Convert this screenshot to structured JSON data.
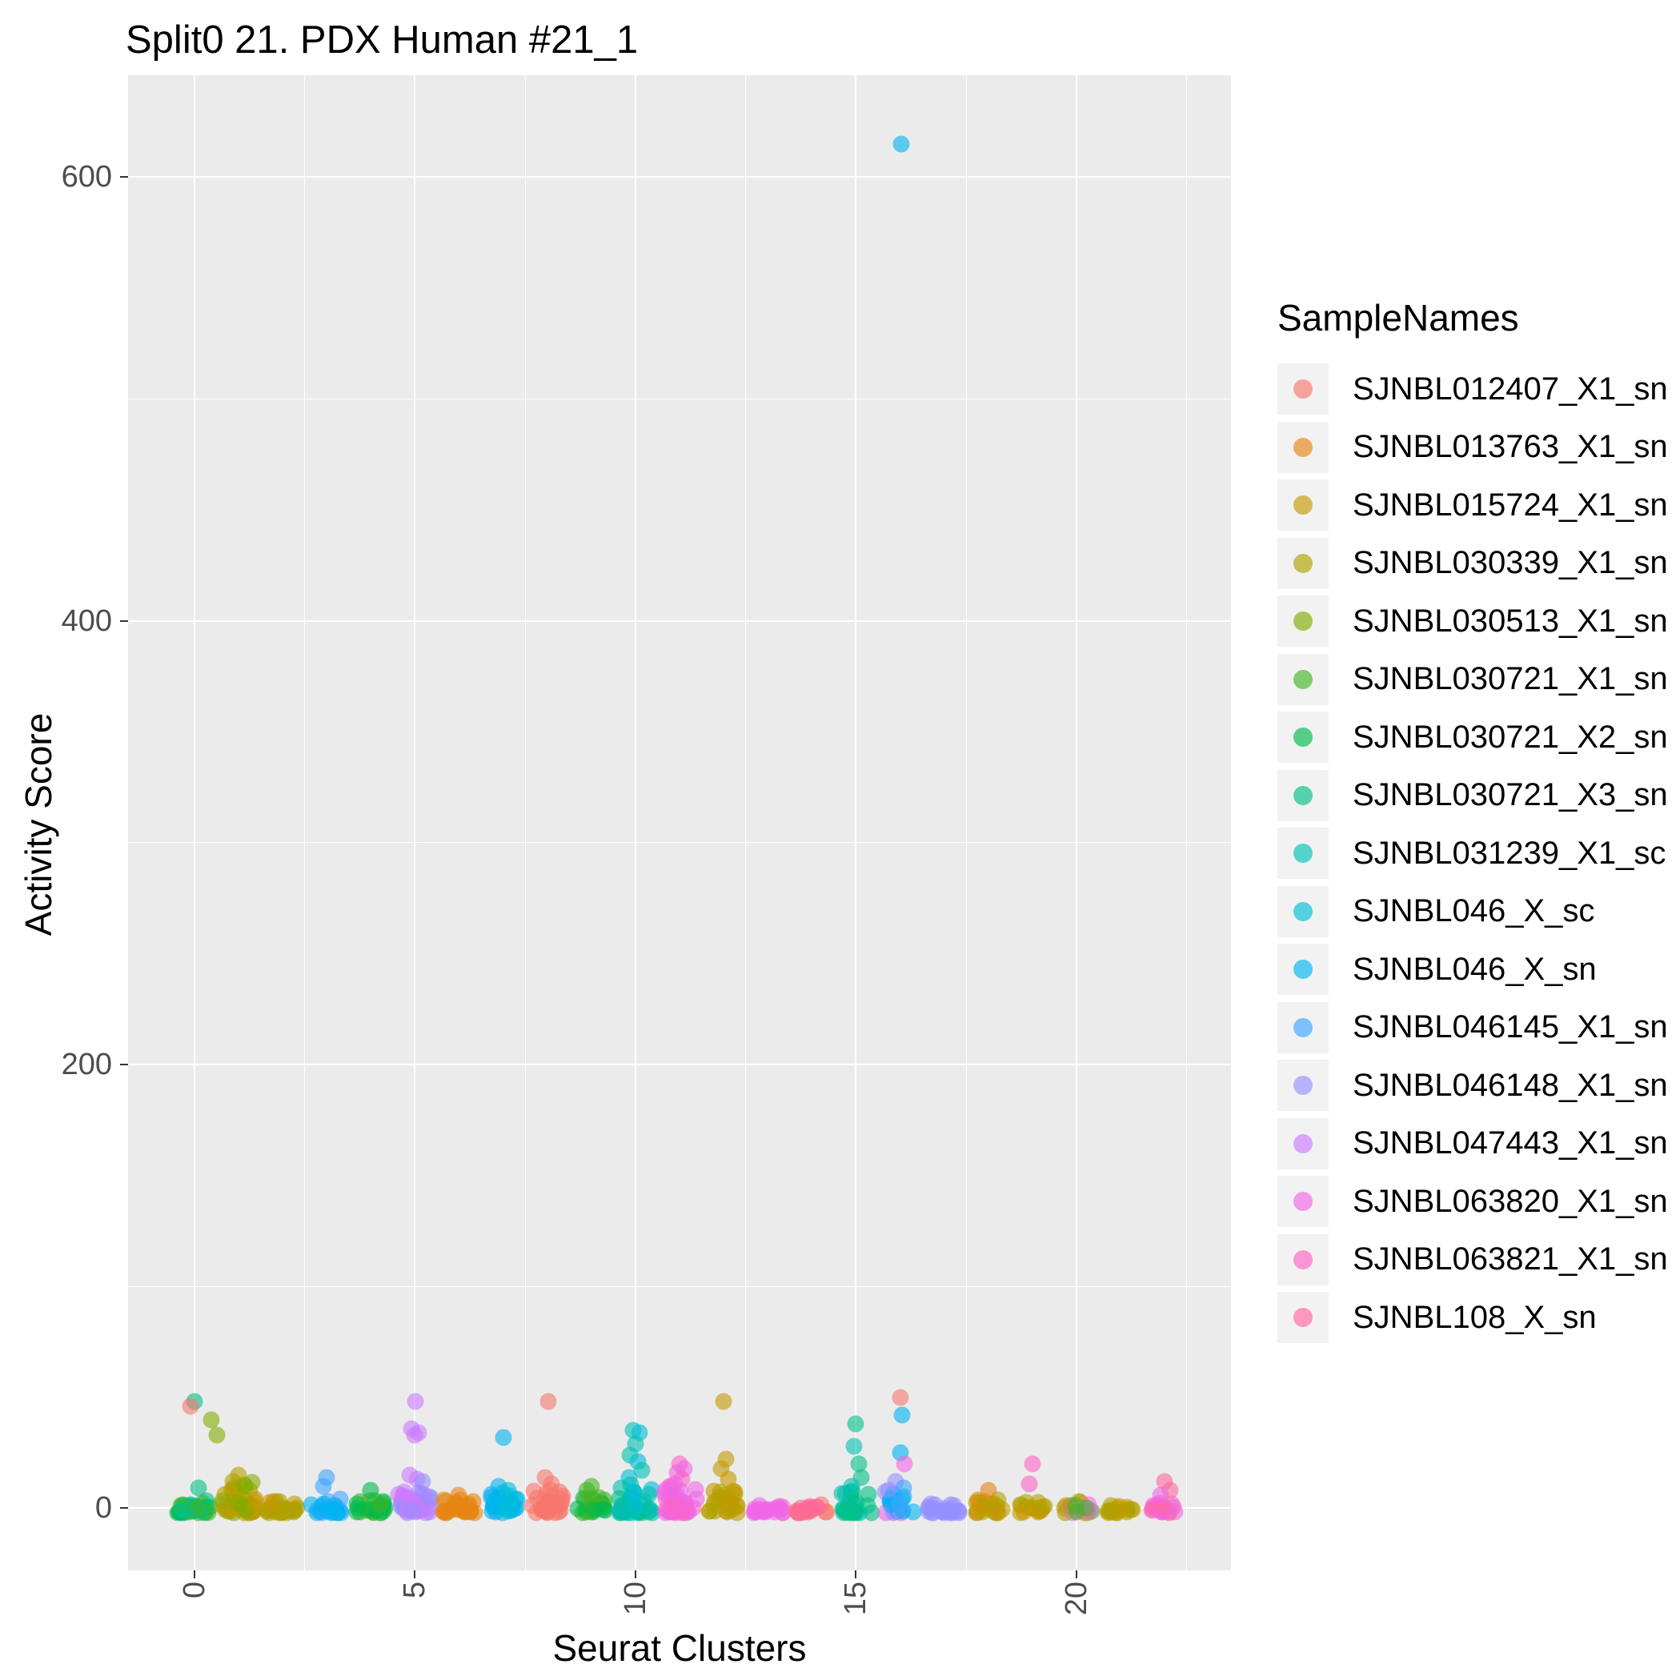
{
  "title": "Split0 21. PDX Human #21_1",
  "axes": {
    "x_title": "Seurat Clusters",
    "y_title": "Activity Score"
  },
  "legend": {
    "title": "SampleNames"
  },
  "samples": [
    {
      "label": "SJNBL012407_X1_sn",
      "color": "#F8766D"
    },
    {
      "label": "SJNBL013763_X1_sn",
      "color": "#E68613"
    },
    {
      "label": "SJNBL015724_X1_sn",
      "color": "#C59900"
    },
    {
      "label": "SJNBL030339_X1_sn",
      "color": "#AFA100"
    },
    {
      "label": "SJNBL030513_X1_sn",
      "color": "#82AC00"
    },
    {
      "label": "SJNBL030721_X1_sn",
      "color": "#43B425"
    },
    {
      "label": "SJNBL030721_X2_sn",
      "color": "#00BB4E"
    },
    {
      "label": "SJNBL030721_X3_sn",
      "color": "#00C087"
    },
    {
      "label": "SJNBL031239_X1_sc",
      "color": "#00C0B2"
    },
    {
      "label": "SJNBL046_X_sc",
      "color": "#00BCD8"
    },
    {
      "label": "SJNBL046_X_sn",
      "color": "#00B3F2"
    },
    {
      "label": "SJNBL046145_X1_sn",
      "color": "#3DA5FF"
    },
    {
      "label": "SJNBL046148_X1_sn",
      "color": "#9590FF"
    },
    {
      "label": "SJNBL047443_X1_sn",
      "color": "#CC79FF"
    },
    {
      "label": "SJNBL063820_X1_sn",
      "color": "#F067E6"
    },
    {
      "label": "SJNBL063821_X1_sn",
      "color": "#FB64C5"
    },
    {
      "label": "SJNBL108_X_sn",
      "color": "#FD699C"
    }
  ],
  "chart_data": {
    "type": "scatter",
    "title": "Split0 21. PDX Human #21_1",
    "xlabel": "Seurat Clusters",
    "ylabel": "Activity Score",
    "xlim": [
      -1.5,
      23.5
    ],
    "ylim": [
      -28,
      646
    ],
    "x_ticks": [
      0,
      5,
      10,
      15,
      20
    ],
    "y_ticks": [
      0,
      200,
      400,
      600
    ],
    "x_minor": [
      2.5,
      7.5,
      12.5,
      17.5,
      22.5
    ],
    "y_minor": [
      100,
      300,
      500
    ],
    "panel_bg": "#EBEBEB",
    "grid_color": "#FFFFFF",
    "legend_position": "right",
    "point_alpha": 0.6,
    "band_y_min": -2,
    "points": [
      [
        0.0,
        48,
        7
      ],
      [
        -0.08,
        46,
        0
      ],
      [
        0.38,
        40,
        4
      ],
      [
        0.52,
        33,
        4
      ],
      [
        0.1,
        9,
        7
      ],
      [
        1.0,
        15,
        3
      ],
      [
        0.88,
        12,
        3
      ],
      [
        1.15,
        10,
        4
      ],
      [
        3.0,
        14,
        11
      ],
      [
        2.92,
        10,
        11
      ],
      [
        4.0,
        8,
        6
      ],
      [
        5.02,
        48,
        13
      ],
      [
        4.93,
        36,
        13
      ],
      [
        5.08,
        34,
        13
      ],
      [
        5.0,
        33,
        13
      ],
      [
        4.88,
        15,
        13
      ],
      [
        5.05,
        13,
        13
      ],
      [
        5.18,
        12,
        12
      ],
      [
        6.0,
        6,
        1
      ],
      [
        7.0,
        32,
        10
      ],
      [
        6.9,
        10,
        10
      ],
      [
        7.12,
        8,
        9
      ],
      [
        8.02,
        48,
        0
      ],
      [
        7.95,
        14,
        0
      ],
      [
        8.1,
        11,
        0
      ],
      [
        9.0,
        10,
        5
      ],
      [
        8.9,
        8,
        5
      ],
      [
        9.95,
        35,
        8
      ],
      [
        10.1,
        34,
        9
      ],
      [
        10.0,
        29,
        8
      ],
      [
        9.88,
        24,
        8
      ],
      [
        10.06,
        21,
        9
      ],
      [
        10.15,
        17,
        8
      ],
      [
        9.85,
        14,
        9
      ],
      [
        11.0,
        20,
        15
      ],
      [
        11.1,
        18,
        14
      ],
      [
        10.95,
        16,
        14
      ],
      [
        11.05,
        13,
        15
      ],
      [
        10.9,
        11,
        14
      ],
      [
        12.0,
        48,
        2
      ],
      [
        12.06,
        22,
        2
      ],
      [
        11.95,
        18,
        2
      ],
      [
        12.1,
        13,
        2
      ],
      [
        15.0,
        38,
        7
      ],
      [
        14.95,
        28,
        8
      ],
      [
        15.06,
        20,
        7
      ],
      [
        15.12,
        14,
        7
      ],
      [
        14.9,
        10,
        8
      ],
      [
        16.02,
        615,
        10
      ],
      [
        16.0,
        50,
        0
      ],
      [
        16.05,
        42,
        10
      ],
      [
        16.0,
        25,
        10
      ],
      [
        16.1,
        20,
        14
      ],
      [
        15.9,
        12,
        12
      ],
      [
        16.08,
        9,
        11
      ],
      [
        18.0,
        8,
        1
      ],
      [
        19.0,
        20,
        15
      ],
      [
        18.92,
        11,
        15
      ],
      [
        22.0,
        12,
        16
      ],
      [
        22.12,
        8,
        16
      ],
      [
        21.9,
        6,
        14
      ]
    ],
    "dense_bands": [
      {
        "x": 0,
        "spread": 0.38,
        "y_max": 4,
        "n": 40,
        "samples": [
          5,
          6,
          7,
          8
        ]
      },
      {
        "x": 1,
        "spread": 0.4,
        "y_max": 12,
        "n": 46,
        "samples": [
          3,
          4,
          2
        ]
      },
      {
        "x": 2,
        "spread": 0.38,
        "y_max": 3,
        "n": 28,
        "samples": [
          3,
          2
        ]
      },
      {
        "x": 3,
        "spread": 0.35,
        "y_max": 5,
        "n": 24,
        "samples": [
          11,
          10
        ]
      },
      {
        "x": 4,
        "spread": 0.33,
        "y_max": 4,
        "n": 22,
        "samples": [
          6,
          5
        ]
      },
      {
        "x": 5,
        "spread": 0.38,
        "y_max": 8,
        "n": 34,
        "samples": [
          13,
          12
        ]
      },
      {
        "x": 6,
        "spread": 0.38,
        "y_max": 4,
        "n": 26,
        "samples": [
          1
        ]
      },
      {
        "x": 7,
        "spread": 0.36,
        "y_max": 7,
        "n": 28,
        "samples": [
          10,
          9
        ]
      },
      {
        "x": 8,
        "spread": 0.36,
        "y_max": 8,
        "n": 28,
        "samples": [
          0
        ]
      },
      {
        "x": 9,
        "spread": 0.33,
        "y_max": 6,
        "n": 22,
        "samples": [
          5,
          6
        ]
      },
      {
        "x": 10,
        "spread": 0.38,
        "y_max": 12,
        "n": 42,
        "samples": [
          8,
          9,
          7
        ]
      },
      {
        "x": 11,
        "spread": 0.38,
        "y_max": 10,
        "n": 38,
        "samples": [
          14,
          15
        ]
      },
      {
        "x": 12,
        "spread": 0.36,
        "y_max": 8,
        "n": 28,
        "samples": [
          2,
          3
        ]
      },
      {
        "x": 13,
        "spread": 0.36,
        "y_max": 2,
        "n": 20,
        "samples": [
          14
        ]
      },
      {
        "x": 14,
        "spread": 0.36,
        "y_max": 2,
        "n": 20,
        "samples": [
          0,
          16
        ]
      },
      {
        "x": 15,
        "spread": 0.36,
        "y_max": 8,
        "n": 26,
        "samples": [
          7,
          8
        ]
      },
      {
        "x": 16,
        "spread": 0.36,
        "y_max": 8,
        "n": 26,
        "samples": [
          10,
          11,
          12,
          14
        ]
      },
      {
        "x": 17,
        "spread": 0.36,
        "y_max": 3,
        "n": 22,
        "samples": [
          12
        ]
      },
      {
        "x": 18,
        "spread": 0.34,
        "y_max": 4,
        "n": 20,
        "samples": [
          2,
          3,
          1
        ]
      },
      {
        "x": 19,
        "spread": 0.3,
        "y_max": 3,
        "n": 16,
        "samples": [
          3,
          2
        ]
      },
      {
        "x": 20,
        "spread": 0.34,
        "y_max": 3,
        "n": 18,
        "samples": [
          3,
          5,
          14,
          2
        ]
      },
      {
        "x": 21,
        "spread": 0.3,
        "y_max": 2,
        "n": 16,
        "samples": [
          3,
          2
        ]
      },
      {
        "x": 22,
        "spread": 0.32,
        "y_max": 4,
        "n": 18,
        "samples": [
          16,
          14,
          15
        ]
      }
    ],
    "notes": "Jittered scatter (ggplot style). x = Seurat cluster id 0-22; points entries are [x, activity_score, sample_index]; dense_bands approximate heavily overplotted points near score 0."
  }
}
